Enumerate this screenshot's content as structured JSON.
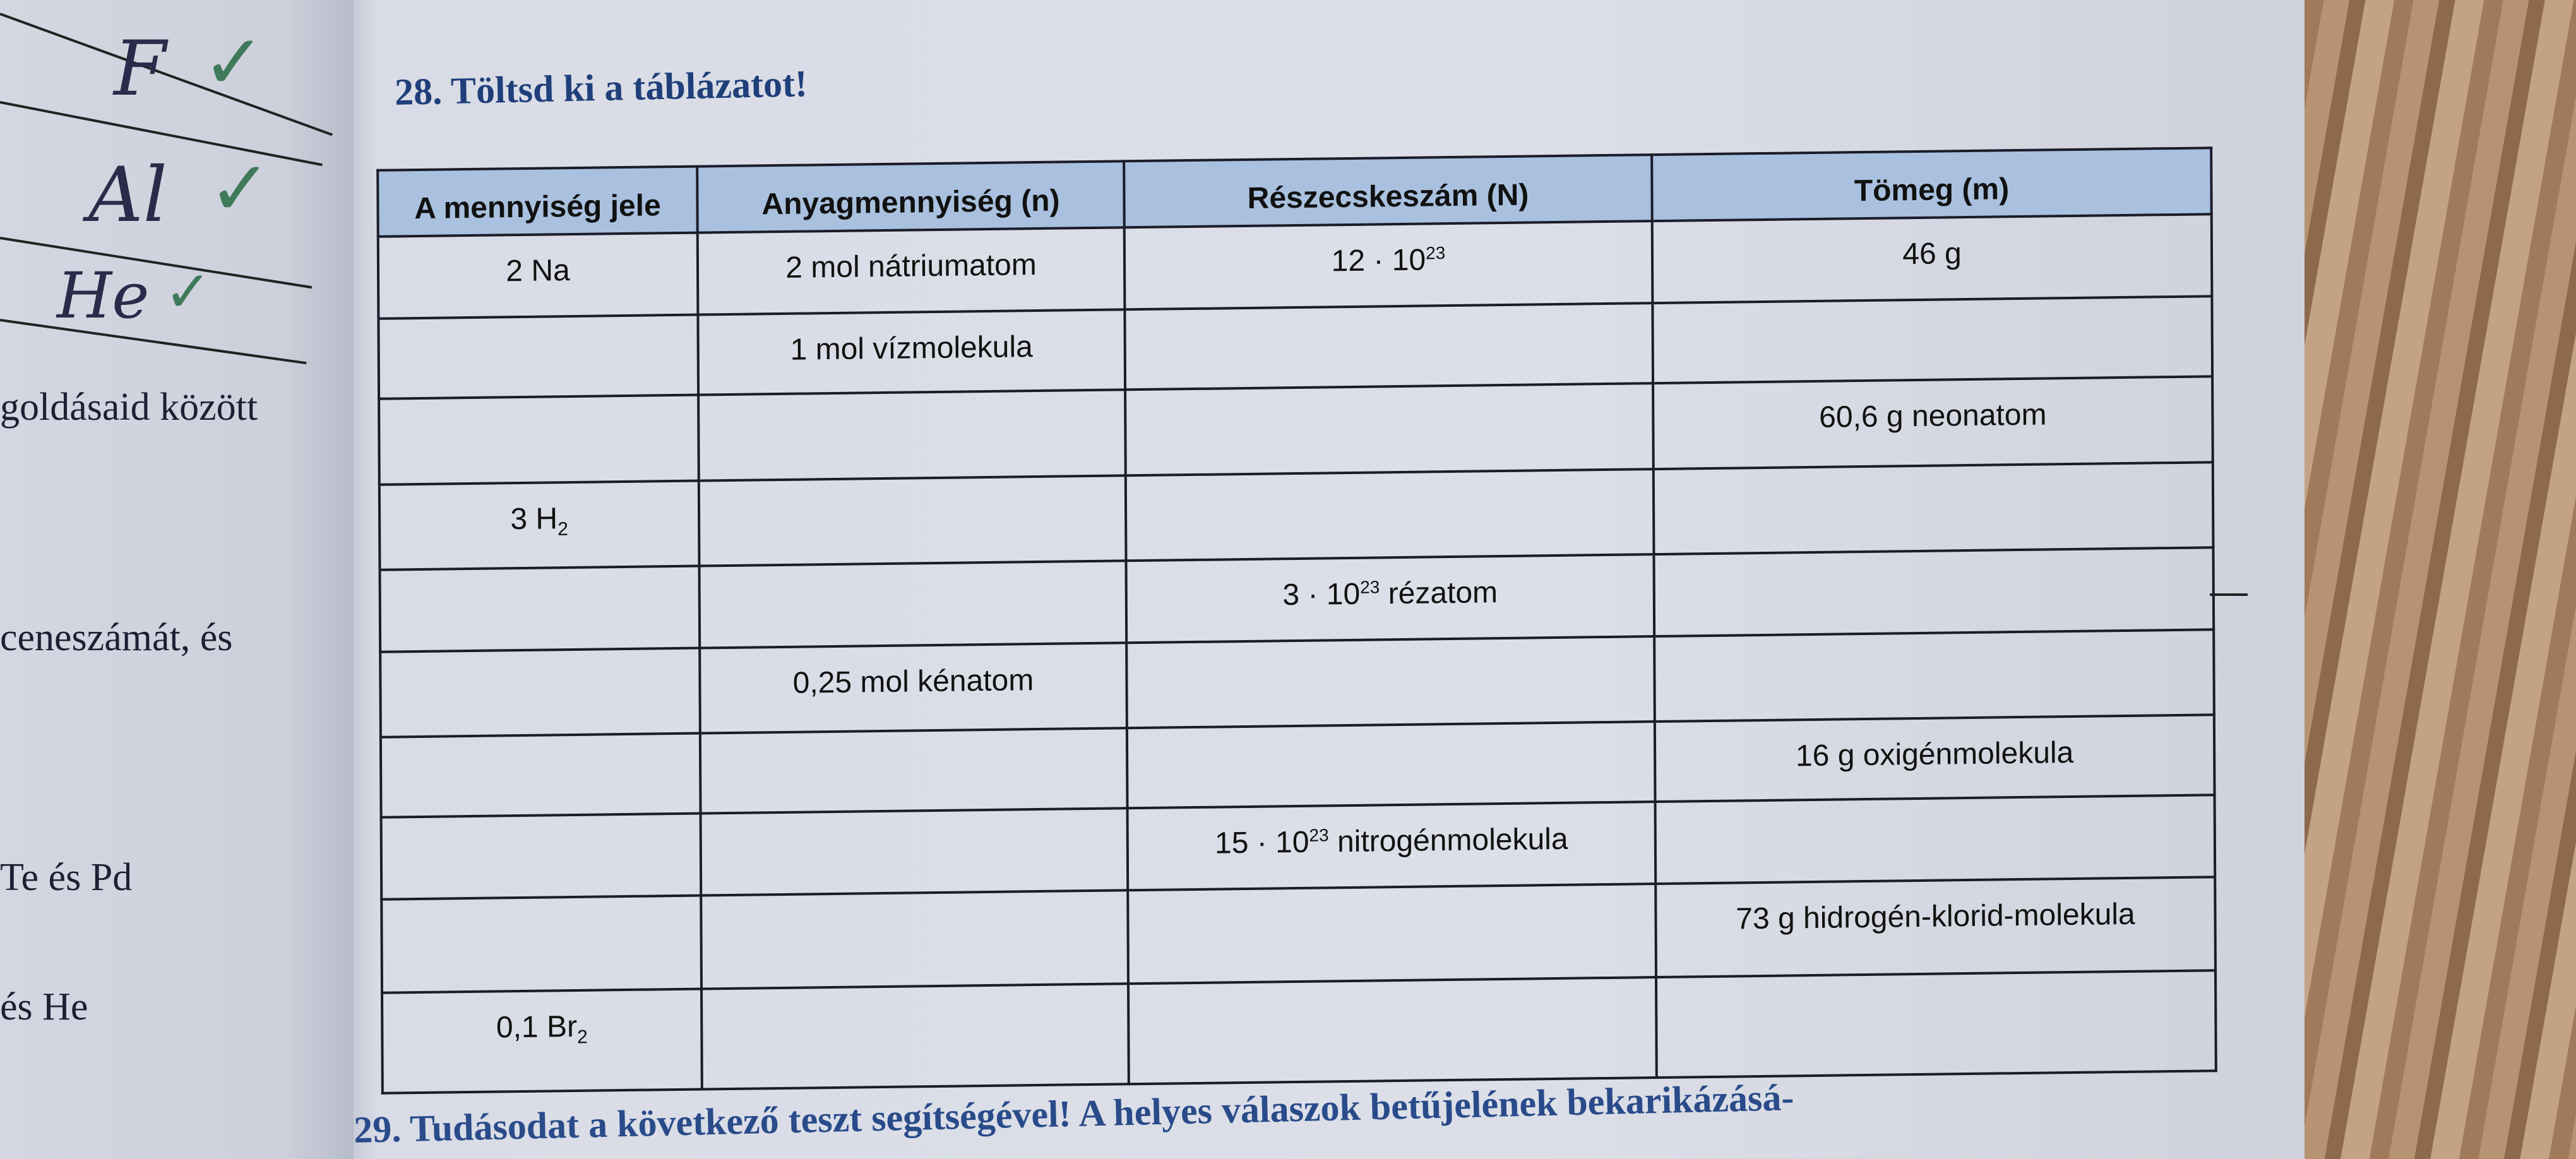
{
  "left_page": {
    "handwritten": [
      {
        "text": "F",
        "checked": true
      },
      {
        "text": "Al",
        "checked": true
      },
      {
        "text": "He",
        "checked": true
      }
    ],
    "check_symbol": "✓",
    "text_fragments": [
      "goldásaid között",
      "ceneszámát, és",
      "Te és Pd",
      "és He"
    ]
  },
  "exercise": {
    "title": "28. Töltsd ki a táblázatot!",
    "table": {
      "headers": [
        "A mennyiség jele",
        "Anyagmennyiség (n)",
        "Részecskeszám (N)",
        "Tömeg (m)"
      ],
      "rows": [
        [
          {
            "t": "2 Na"
          },
          {
            "t": "2 mol nátriumatom"
          },
          {
            "t": "12 · 10",
            "sup": "23"
          },
          {
            "t": "46 g"
          }
        ],
        [
          {
            "t": ""
          },
          {
            "t": "1 mol vízmolekula"
          },
          {
            "t": ""
          },
          {
            "t": ""
          }
        ],
        [
          {
            "t": ""
          },
          {
            "t": ""
          },
          {
            "t": ""
          },
          {
            "t": "60,6 g neonatom"
          }
        ],
        [
          {
            "t": "3 H",
            "sub": "2"
          },
          {
            "t": ""
          },
          {
            "t": ""
          },
          {
            "t": ""
          }
        ],
        [
          {
            "t": ""
          },
          {
            "t": ""
          },
          {
            "t": "3 · 10",
            "sup": "23",
            "after": " rézatom"
          },
          {
            "t": ""
          }
        ],
        [
          {
            "t": ""
          },
          {
            "t": "0,25 mol kénatom"
          },
          {
            "t": ""
          },
          {
            "t": ""
          }
        ],
        [
          {
            "t": ""
          },
          {
            "t": ""
          },
          {
            "t": ""
          },
          {
            "t": "16 g oxigénmolekula"
          }
        ],
        [
          {
            "t": ""
          },
          {
            "t": ""
          },
          {
            "t": "15 · 10",
            "sup": "23",
            "after": " nitrogénmolekula"
          },
          {
            "t": ""
          }
        ],
        [
          {
            "t": ""
          },
          {
            "t": ""
          },
          {
            "t": ""
          },
          {
            "t": "73 g hidrogén-klorid-molekula"
          }
        ],
        [
          {
            "t": "0,1 Br",
            "sub": "2"
          },
          {
            "t": ""
          },
          {
            "t": ""
          },
          {
            "t": ""
          }
        ]
      ]
    },
    "header_color": "#a9c1de"
  },
  "next_exercise_text": "29. Tudásodat a következő teszt segítségével! A helyes válaszok betűjelének bekarikázásá-"
}
